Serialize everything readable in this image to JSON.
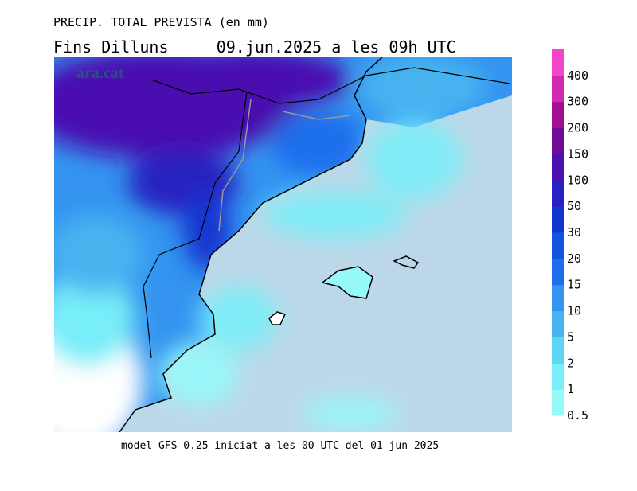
{
  "header": {
    "title": "PRECIP. TOTAL PREVISTA (en mm)",
    "subtitle": "Fins Dilluns     09.jun.2025 a les 09h UTC"
  },
  "map": {
    "watermark": "ara.cat"
  },
  "footer": "model GFS 0.25 iniciat a les 00 UTC del 01 jun 2025",
  "legend": [
    {
      "value": 0.5,
      "color": "#96fafa"
    },
    {
      "value": 1,
      "color": "#78eef8"
    },
    {
      "value": 2,
      "color": "#5cd6f4"
    },
    {
      "value": 5,
      "color": "#46b4f0"
    },
    {
      "value": 10,
      "color": "#3494f0"
    },
    {
      "value": 15,
      "color": "#1e6eec"
    },
    {
      "value": 20,
      "color": "#1452e0"
    },
    {
      "value": 30,
      "color": "#1436d0"
    },
    {
      "value": 50,
      "color": "#2820c0"
    },
    {
      "value": 100,
      "color": "#4a10b0"
    },
    {
      "value": 150,
      "color": "#6e0c98"
    },
    {
      "value": 200,
      "color": "#a01090"
    },
    {
      "value": 300,
      "color": "#d02ab0"
    },
    {
      "value": 400,
      "color": "#f446c8"
    }
  ]
}
